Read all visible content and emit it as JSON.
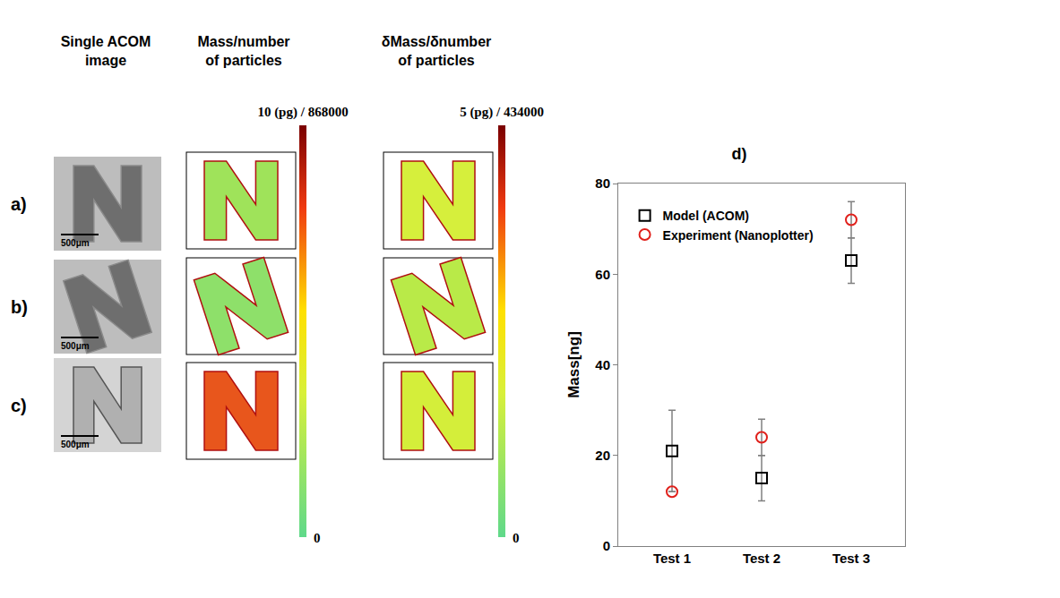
{
  "panels": {
    "column_headers": [
      "Single ACOM image",
      "Mass/number of particles",
      "δMass/δnumber of particles"
    ],
    "scale_bar": "500μm",
    "rows": [
      {
        "label": "a)",
        "colors": [
          "#9fe35a",
          "#d6ef3c"
        ]
      },
      {
        "label": "b)",
        "colors": [
          "#8ee06a",
          "#b9ea48"
        ]
      },
      {
        "label": "c)",
        "colors": [
          "#e8561c",
          "#d4ee3a"
        ]
      }
    ],
    "colorbars": [
      {
        "range": [
          0,
          10
        ],
        "ticks": [
          {
            "value": 0,
            "label": "0"
          },
          {
            "value": 10,
            "label": "10 (pg) / 868000"
          }
        ]
      },
      {
        "range": [
          0,
          5
        ],
        "ticks": [
          {
            "value": 0,
            "label": "0"
          },
          {
            "value": 5,
            "label": "5 (pg) / 434000"
          }
        ]
      }
    ]
  },
  "chart_data": {
    "type": "scatter",
    "title": "d)",
    "y_label": "Mass[ng]",
    "categories": [
      "Test 1",
      "Test 2",
      "Test 3"
    ],
    "series": [
      {
        "name": "Model (ACOM)",
        "color": "#000000",
        "marker": "square",
        "values": [
          21,
          15,
          63
        ],
        "errors": [
          9,
          5,
          5
        ]
      },
      {
        "name": "Experiment (Nanoplotter)",
        "color": "#e0201b",
        "marker": "circle",
        "values": [
          12,
          24,
          72
        ],
        "errors": [
          0,
          4,
          4
        ]
      }
    ],
    "ylim": [
      0,
      80
    ],
    "yticks": [
      0,
      20,
      40,
      60,
      80
    ],
    "grid": false,
    "legend": "top left"
  }
}
